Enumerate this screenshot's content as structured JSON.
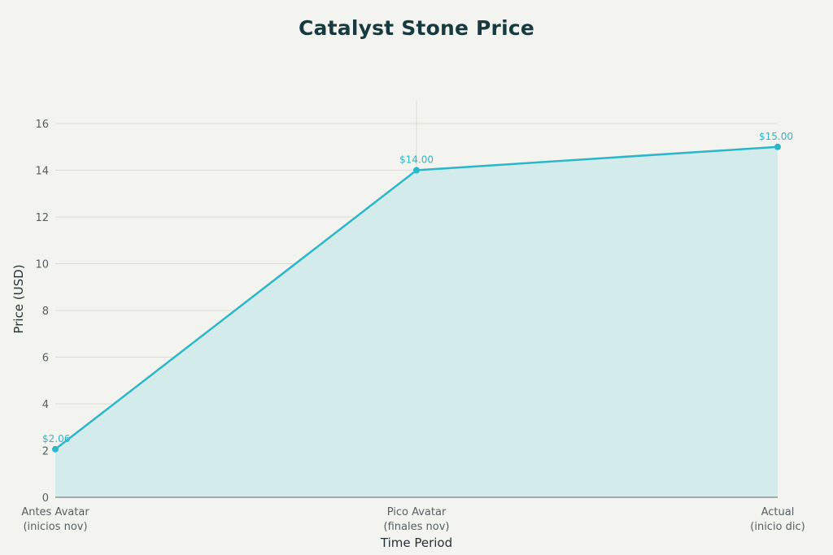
{
  "chart_data": {
    "type": "area",
    "title": "Catalyst Stone Price",
    "xlabel": "Time Period",
    "ylabel": "Price (USD)",
    "categories": [
      [
        "Antes Avatar",
        "(inicios nov)"
      ],
      [
        "Pico Avatar",
        "(finales nov)"
      ],
      [
        "Actual",
        "(inicio dic)"
      ]
    ],
    "values": [
      2.06,
      14.0,
      15.0
    ],
    "data_labels": [
      "$2.06",
      "$14.00",
      "$15.00"
    ],
    "yticks": [
      "0",
      "2",
      "4",
      "6",
      "8",
      "10",
      "12",
      "14",
      "16"
    ],
    "ylim": [
      0,
      17
    ],
    "grid": true,
    "colors": {
      "line": "#2bb7c9",
      "fill": "#d3ebea",
      "grid": "#dcdcd6",
      "background": "#f3f3ef"
    }
  }
}
